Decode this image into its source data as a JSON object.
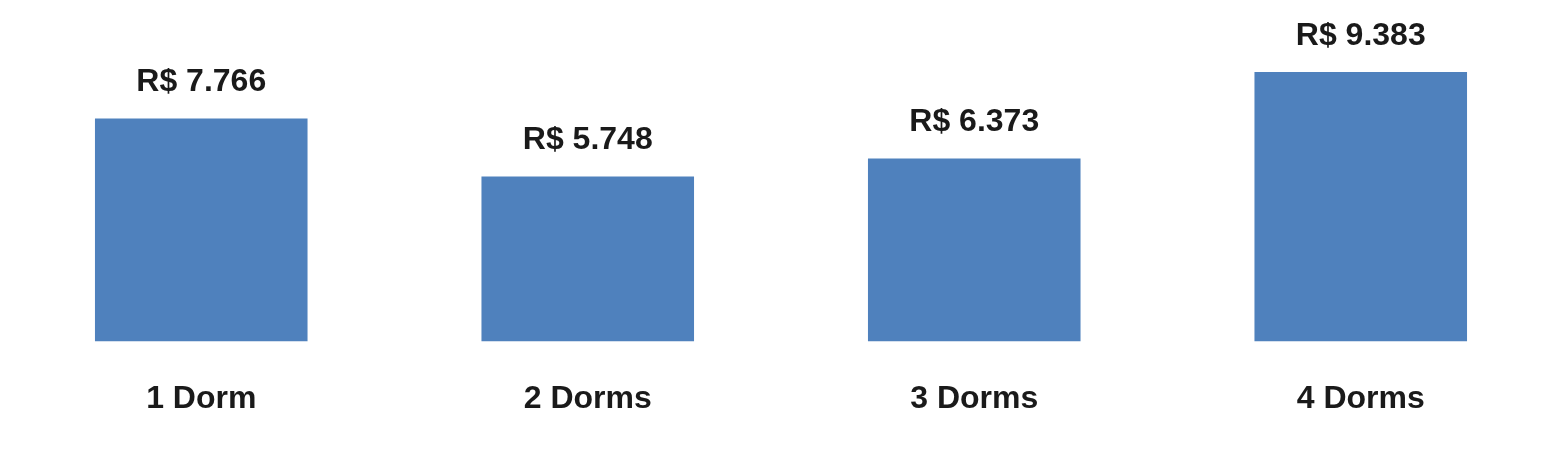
{
  "chart_data": {
    "type": "bar",
    "categories": [
      "1 Dorm",
      "2 Dorms",
      "3 Dorms",
      "4 Dorms"
    ],
    "values": [
      7766,
      5748,
      6373,
      9383
    ],
    "value_labels": [
      "R$ 7.766",
      "R$ 5.748",
      "R$ 6.373",
      "R$ 9.383"
    ],
    "color": "#4f81bd",
    "grid": false,
    "legend": false
  }
}
